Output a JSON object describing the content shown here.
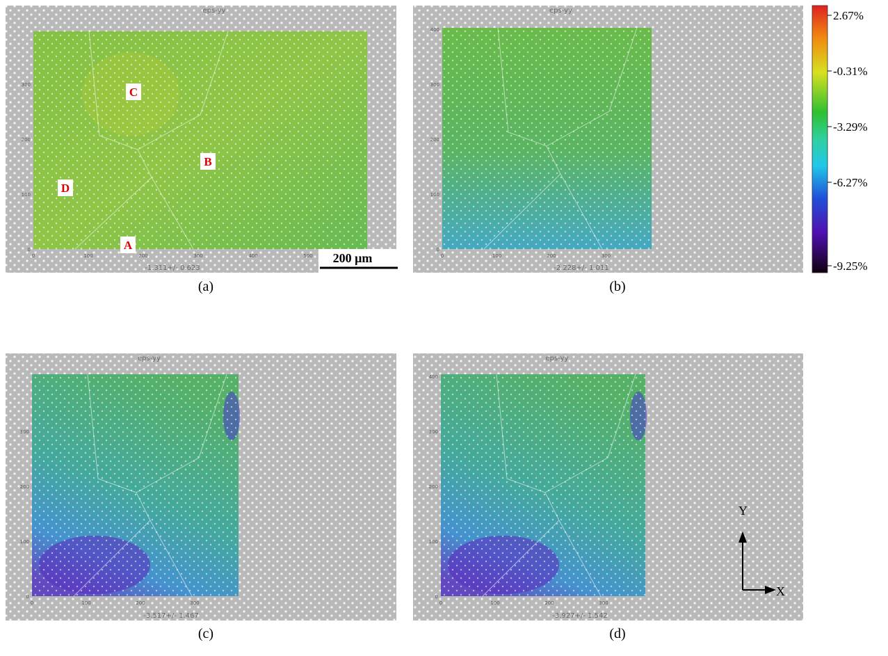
{
  "panels": [
    {
      "caption": "(a)",
      "title": "eps-yy",
      "stats": "-1.311+/- 0.623",
      "xticks": [
        "0",
        "100",
        "200",
        "300",
        "400",
        "500"
      ],
      "yticks": [
        "0",
        "100",
        "200",
        "300"
      ],
      "regions": [
        "A",
        "B",
        "C",
        "D"
      ],
      "scale_bar": "200 μm"
    },
    {
      "caption": "(b)",
      "title": "eps-yy",
      "stats": "-2.228+/- 1.011",
      "xticks": [
        "0",
        "100",
        "200",
        "300"
      ],
      "yticks": [
        "0",
        "100",
        "200",
        "300",
        "400"
      ]
    },
    {
      "caption": "(c)",
      "title": "eps-yy",
      "stats": "-3.517+/- 1.467",
      "xticks": [
        "0",
        "100",
        "200",
        "300"
      ],
      "yticks": [
        "0",
        "100",
        "200",
        "300"
      ]
    },
    {
      "caption": "(d)",
      "title": "eps-yy",
      "stats": "-3.927+/- 1.542",
      "xticks": [
        "0",
        "100",
        "200",
        "300"
      ],
      "yticks": [
        "0",
        "100",
        "200",
        "300",
        "400"
      ],
      "axes": [
        "X",
        "Y"
      ]
    }
  ],
  "colorbar": {
    "labels": [
      "2.67%",
      "-0.31%",
      "-3.29%",
      "-6.27%",
      "-9.25%"
    ]
  }
}
